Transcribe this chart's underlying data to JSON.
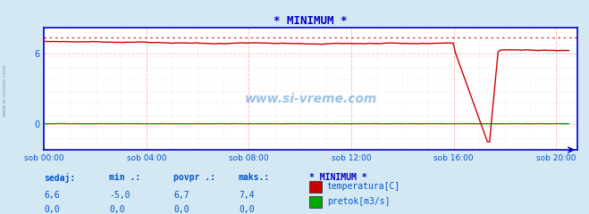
{
  "title": "* MINIMUM *",
  "title_color": "#0000cc",
  "background_color": "#d4e8f4",
  "plot_bg_color": "#ffffff",
  "grid_color": "#ffaaaa",
  "x_label_color": "#0055cc",
  "y_label_color": "#0055cc",
  "watermark": "www.si-vreme.com",
  "xlim": [
    0,
    20.83
  ],
  "ylim": [
    -2.2,
    8.2
  ],
  "ytick_vals": [
    0,
    6
  ],
  "ytick_labels": [
    "0",
    "6"
  ],
  "xtick_vals": [
    0,
    4,
    8,
    12,
    16,
    20
  ],
  "xtick_labels": [
    "sob 00:00",
    "sob 04:00",
    "sob 08:00",
    "sob 12:00",
    "sob 16:00",
    "sob 20:00"
  ],
  "temp_color": "#cc0000",
  "flow_color": "#00aa00",
  "dashed_color": "#cc0000",
  "dashed_level": 7.4,
  "axis_color": "#0000cc",
  "legend_title": "* MINIMUM *",
  "legend_title_color": "#0000cc",
  "legend_items": [
    "temperatura[C]",
    "pretok[m3/s]"
  ],
  "legend_colors": [
    "#cc0000",
    "#00aa00"
  ],
  "table_headers": [
    "sedaj:",
    "min .:",
    "povpr .:",
    "maks.:"
  ],
  "table_values_temp": [
    "6,6",
    "-5,0",
    "6,7",
    "7,4"
  ],
  "table_values_flow": [
    "0,0",
    "0,0",
    "0,0",
    "0,0"
  ],
  "table_color": "#0055cc",
  "sidebar_text": "www.si-vreme.com",
  "sidebar_color": "#5599bb"
}
